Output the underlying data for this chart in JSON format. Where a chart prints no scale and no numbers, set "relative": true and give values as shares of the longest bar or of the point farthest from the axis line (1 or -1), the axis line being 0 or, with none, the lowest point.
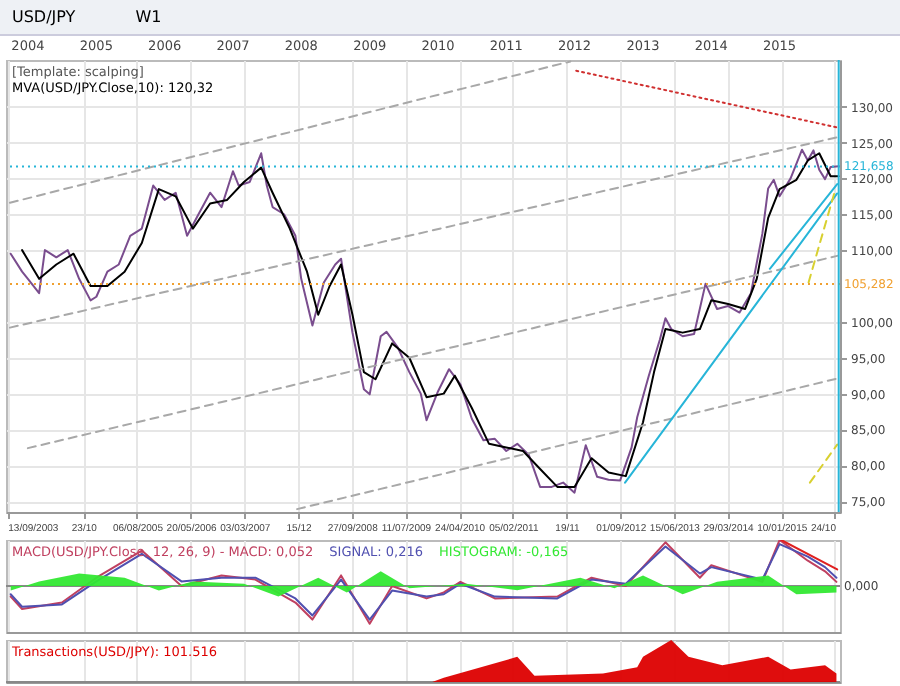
{
  "chart_data": [
    {
      "type": "line",
      "title": "[Template: scalping]",
      "annotations": [
        "USD/JPY",
        "W1"
      ],
      "grid": true,
      "xlim": [
        "2003-09-06",
        "2015-11-20"
      ],
      "x2lim": [
        "2003-09-06",
        "2015-11-20"
      ],
      "ylim": [
        73.5,
        136.5
      ],
      "xticks": [
        {
          "value": "2003-09-13",
          "label": "13/09/2003"
        },
        {
          "value": "2004-10-23",
          "label": "23/10"
        },
        {
          "value": "2005-08-06",
          "label": "06/08/2005"
        },
        {
          "value": "2006-05-20",
          "label": "20/05/2006"
        },
        {
          "value": "2007-03-03",
          "label": "03/03/2007"
        },
        {
          "value": "2007-12-15",
          "label": "15/12"
        },
        {
          "value": "2008-09-27",
          "label": "27/09/2008"
        },
        {
          "value": "2009-07-11",
          "label": "11/07/2009"
        },
        {
          "value": "2010-04-24",
          "label": "24/04/2010"
        },
        {
          "value": "2011-02-05",
          "label": "05/02/2011"
        },
        {
          "value": "2011-11-19",
          "label": "19/11"
        },
        {
          "value": "2012-09-01",
          "label": "01/09/2012"
        },
        {
          "value": "2013-06-15",
          "label": "15/06/2013"
        },
        {
          "value": "2014-03-29",
          "label": "29/03/2014"
        },
        {
          "value": "2015-01-10",
          "label": "10/01/2015"
        },
        {
          "value": "2015-10-24",
          "label": "24/10"
        }
      ],
      "x2ticks": [
        {
          "value": "2004-01-01",
          "label": "2004"
        },
        {
          "value": "2005-01-01",
          "label": "2005"
        },
        {
          "value": "2006-01-01",
          "label": "2006"
        },
        {
          "value": "2007-01-01",
          "label": "2007"
        },
        {
          "value": "2008-01-01",
          "label": "2008"
        },
        {
          "value": "2009-01-01",
          "label": "2009"
        },
        {
          "value": "2010-01-01",
          "label": "2010"
        },
        {
          "value": "2011-01-01",
          "label": "2011"
        },
        {
          "value": "2012-01-01",
          "label": "2012"
        },
        {
          "value": "2013-01-01",
          "label": "2013"
        },
        {
          "value": "2014-01-01",
          "label": "2014"
        },
        {
          "value": "2015-01-01",
          "label": "2015"
        }
      ],
      "yticks": [
        {
          "value": 75,
          "label": "75,00"
        },
        {
          "value": 80,
          "label": "80,00"
        },
        {
          "value": 85,
          "label": "85,00"
        },
        {
          "value": 90,
          "label": "90,00"
        },
        {
          "value": 95,
          "label": "95,00"
        },
        {
          "value": 100,
          "label": "100,00"
        },
        {
          "value": 110,
          "label": "110,00"
        },
        {
          "value": 115,
          "label": "115,00"
        },
        {
          "value": 120,
          "label": "120,00"
        },
        {
          "value": 125,
          "label": "125,00"
        },
        {
          "value": 130,
          "label": "130,00"
        }
      ],
      "ref_lines": [
        {
          "axis": "y",
          "value": 121.658,
          "label": "121,658",
          "color": "#27b5d8",
          "line_style": "dotted"
        },
        {
          "axis": "y",
          "value": 105.282,
          "label": "105,282",
          "color": "#f0a030",
          "line_style": "dotted"
        },
        {
          "axis": "x",
          "value": "2015-11-13",
          "color": "#27b5d8"
        }
      ],
      "series": [
        {
          "color": "#7a4d8e",
          "x": [
            "2003-10",
            "2003-12",
            "2004-01",
            "2004-03",
            "2004-04",
            "2004-06",
            "2004-08",
            "2004-10",
            "2004-12",
            "2005-01",
            "2005-03",
            "2005-05",
            "2005-07",
            "2005-09",
            "2005-11",
            "2005-12",
            "2006-01",
            "2006-03",
            "2006-05",
            "2006-07",
            "2006-09",
            "2006-11",
            "2007-01",
            "2007-02",
            "2007-04",
            "2007-06",
            "2007-07",
            "2007-08",
            "2007-10",
            "2007-12",
            "2008-01",
            "2008-03",
            "2008-05",
            "2008-07",
            "2008-08",
            "2008-10",
            "2008-12",
            "2009-01",
            "2009-03",
            "2009-04",
            "2009-06",
            "2009-08",
            "2009-10",
            "2009-11",
            "2010-01",
            "2010-03",
            "2010-05",
            "2010-07",
            "2010-09",
            "2010-11",
            "2011-01",
            "2011-03",
            "2011-05",
            "2011-07",
            "2011-09",
            "2011-11",
            "2012-01",
            "2012-03",
            "2012-05",
            "2012-07",
            "2012-09",
            "2012-11",
            "2012-12",
            "2013-02",
            "2013-04",
            "2013-05",
            "2013-06",
            "2013-08",
            "2013-10",
            "2013-12",
            "2014-02",
            "2014-04",
            "2014-06",
            "2014-08",
            "2014-10",
            "2014-11",
            "2014-12",
            "2015-01",
            "2015-03",
            "2015-05",
            "2015-06",
            "2015-07",
            "2015-08",
            "2015-09",
            "2015-10",
            "2015-11-13"
          ],
          "values": [
            109.5,
            107,
            106,
            104,
            110,
            109,
            110,
            106,
            103,
            103.5,
            107,
            108,
            112,
            113,
            119,
            118,
            117,
            118,
            112,
            115,
            118,
            116,
            121,
            119,
            119.5,
            123.5,
            119,
            116,
            115,
            112,
            106,
            99.5,
            105.5,
            108,
            108.8,
            98.5,
            90.6,
            89.9,
            98,
            98.6,
            96.4,
            93,
            90,
            86.3,
            90.3,
            93.4,
            91.3,
            86.5,
            83.5,
            83.7,
            82,
            83,
            81.5,
            77,
            77,
            77.6,
            76.2,
            82.8,
            78.4,
            78,
            77.9,
            82.5,
            86.7,
            92.5,
            97.5,
            100.5,
            99,
            98,
            98.3,
            105.3,
            101.8,
            102.2,
            101.3,
            104,
            112.3,
            118.6,
            119.8,
            117.5,
            120,
            124,
            122.5,
            123.9,
            121.2,
            119.9,
            121.6,
            121.7
          ]
        },
        {
          "name": "MVA(USD/JPY.Close,10): 120,32",
          "color": "#000000",
          "x": [
            "2003-12",
            "2004-03",
            "2004-06",
            "2004-09",
            "2004-12",
            "2005-03",
            "2005-06",
            "2005-09",
            "2005-12",
            "2006-03",
            "2006-06",
            "2006-09",
            "2006-12",
            "2007-03",
            "2007-06",
            "2007-08",
            "2007-11",
            "2008-02",
            "2008-04",
            "2008-06",
            "2008-08",
            "2008-10",
            "2008-12",
            "2009-02",
            "2009-05",
            "2009-08",
            "2009-11",
            "2010-02",
            "2010-04",
            "2010-07",
            "2010-10",
            "2011-01",
            "2011-04",
            "2011-07",
            "2011-10",
            "2012-01",
            "2012-04",
            "2012-07",
            "2012-10",
            "2013-01",
            "2013-03",
            "2013-05",
            "2013-08",
            "2013-11",
            "2014-01",
            "2014-04",
            "2014-07",
            "2014-09",
            "2014-11",
            "2015-01",
            "2015-04",
            "2015-06",
            "2015-08",
            "2015-10",
            "2015-11-13"
          ],
          "values": [
            110,
            106,
            108,
            109.5,
            105,
            105,
            107,
            111,
            118.5,
            117.5,
            113,
            116.5,
            117,
            119.5,
            121.5,
            118,
            113,
            107,
            101,
            105,
            108,
            101,
            93,
            92,
            97,
            95,
            89.5,
            90,
            92.5,
            88,
            83,
            82.5,
            82,
            79.5,
            77,
            77,
            81,
            79,
            78.5,
            86,
            93,
            99,
            98.5,
            99,
            103,
            102.5,
            101.8,
            106,
            114.5,
            118.5,
            119.8,
            122.5,
            123.5,
            120.3,
            120.3
          ]
        },
        {
          "color": "#a8a8a8",
          "line_style": "dashed",
          "x": [
            "2003-09-27",
            "2011-12-10"
          ],
          "values": [
            116.6,
            136.3
          ]
        },
        {
          "color": "#a8a8a8",
          "line_style": "dashed",
          "x": [
            "2003-09-27",
            "2015-11-17"
          ],
          "values": [
            99.2,
            125.8
          ]
        },
        {
          "color": "#a8a8a8",
          "line_style": "dashed",
          "x": [
            "2004-01-01",
            "2015-11-05"
          ],
          "values": [
            82.4,
            109.2
          ]
        },
        {
          "color": "#a8a8a8",
          "line_style": "dashed",
          "x": [
            "2007-12-10",
            "2015-11-05"
          ],
          "values": [
            73.9,
            92.1
          ]
        },
        {
          "color": "#27b5d8",
          "x": [
            "2012-09-27",
            "2015-11-05"
          ],
          "values": [
            77.6,
            117.9
          ]
        },
        {
          "color": "#27b5d8",
          "x": [
            "2014-11-10",
            "2015-11-05"
          ],
          "values": [
            107.4,
            119.2
          ]
        },
        {
          "color": "#d8d030",
          "line_style": "dashed",
          "x": [
            "2015-06-05",
            "2015-10-20"
          ],
          "values": [
            105.5,
            117.9
          ]
        },
        {
          "color": "#d8d030",
          "line_style": "dashed",
          "x": [
            "2015-06-12",
            "2015-11-05"
          ],
          "values": [
            77.6,
            82.9
          ]
        },
        {
          "color": "#d03030",
          "line_style": "dotted",
          "x": [
            "2012-01-10",
            "2015-11-05"
          ],
          "values": [
            135,
            127.1
          ]
        }
      ]
    },
    {
      "type": "line",
      "relative": true,
      "annotations": [
        "0,000"
      ],
      "grid": "x",
      "tick_labels": false,
      "xlim": [
        "2003-09-06",
        "2015-11-20"
      ],
      "series": [
        {
          "name": "MACD(USD/JPY.Close, 12, 26, 9) - MACD: 0,052",
          "color": "#c04060",
          "x": [
            "2003-10",
            "2003-12",
            "2004-07",
            "2005-01",
            "2005-09",
            "2006-04",
            "2006-11",
            "2007-05",
            "2007-12",
            "2008-03",
            "2008-08",
            "2009-01",
            "2009-05",
            "2009-11",
            "2010-02",
            "2010-05",
            "2010-11",
            "2011-10",
            "2012-04",
            "2012-10",
            "2013-05",
            "2013-11",
            "2014-01",
            "2014-10",
            "2015-01",
            "2015-06",
            "2015-09",
            "2015-11"
          ],
          "values": [
            -0.23,
            -0.5,
            -0.36,
            0.18,
            0.77,
            0,
            0.23,
            0.14,
            -0.36,
            -0.73,
            0.23,
            -0.82,
            0,
            -0.27,
            -0.14,
            0.09,
            -0.27,
            -0.23,
            0.18,
            0,
            0.95,
            0.18,
            0.45,
            0.09,
            1,
            0.55,
            0.32,
            0.09
          ]
        },
        {
          "name": "SIGNAL: 0,216",
          "color": "#5050b0",
          "x": [
            "2003-10",
            "2003-12",
            "2004-07",
            "2005-01",
            "2005-09",
            "2006-04",
            "2006-11",
            "2007-05",
            "2007-12",
            "2008-03",
            "2008-08",
            "2009-01",
            "2009-05",
            "2009-11",
            "2010-02",
            "2010-05",
            "2010-11",
            "2011-10",
            "2012-04",
            "2012-10",
            "2013-05",
            "2013-11",
            "2014-01",
            "2014-10",
            "2015-01",
            "2015-06",
            "2015-09",
            "2015-11"
          ],
          "values": [
            -0.18,
            -0.45,
            -0.4,
            0.1,
            0.7,
            0.1,
            0.18,
            0.18,
            -0.27,
            -0.64,
            0.14,
            -0.73,
            -0.1,
            -0.23,
            -0.18,
            0.05,
            -0.23,
            -0.27,
            0.14,
            0.05,
            0.86,
            0.27,
            0.41,
            0.14,
            0.91,
            0.64,
            0.41,
            0.18
          ]
        },
        {
          "name": "HISTOGRAM: -0,165",
          "type": "area",
          "color": "#33e833",
          "x": [
            "2003-10",
            "2004-03",
            "2004-10",
            "2005-06",
            "2005-12",
            "2006-06",
            "2007-03",
            "2007-09",
            "2008-04",
            "2008-09",
            "2009-03",
            "2009-08",
            "2010-06",
            "2011-03",
            "2012-02",
            "2012-08",
            "2013-01",
            "2013-08",
            "2014-02",
            "2014-11",
            "2015-04",
            "2015-11"
          ],
          "values": [
            -0.1,
            0.1,
            0.27,
            0.18,
            -0.1,
            0.1,
            0.05,
            -0.23,
            0.18,
            -0.14,
            0.32,
            -0.05,
            0.05,
            -0.09,
            0.18,
            -0.05,
            0.23,
            -0.18,
            0.09,
            0.23,
            -0.18,
            -0.14
          ]
        },
        {
          "color": "#e02020",
          "x": [
            "2015-01-10",
            "2015-11-05"
          ],
          "values": [
            1,
            0.36
          ]
        }
      ]
    },
    {
      "type": "area",
      "relative": true,
      "title": "Transactions(USD/JPY): 101.516",
      "grid": "x",
      "tick_labels": false,
      "xlim": [
        "2003-09-06",
        "2015-11-20"
      ],
      "series": [
        {
          "color": "#dd0000",
          "x": [
            "2003-10",
            "2009-12",
            "2010-02",
            "2011-03",
            "2011-06",
            "2012-06",
            "2012-12",
            "2013-01",
            "2013-06",
            "2013-09",
            "2014-03",
            "2014-11",
            "2015-03",
            "2015-09",
            "2015-11"
          ],
          "values": [
            0,
            0,
            0.1,
            0.6,
            0.15,
            0.2,
            0.35,
            0.6,
            1,
            0.6,
            0.4,
            0.6,
            0.3,
            0.4,
            0.2
          ]
        }
      ]
    }
  ]
}
